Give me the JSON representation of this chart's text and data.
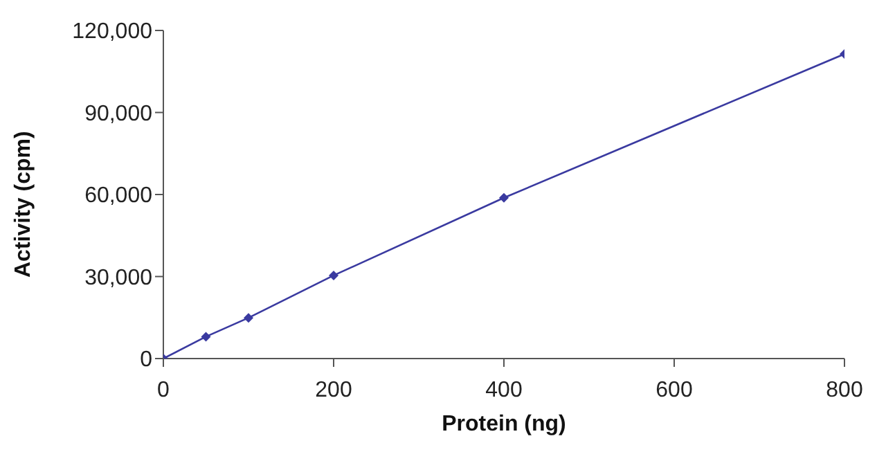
{
  "chart_data": {
    "type": "line",
    "xlabel": "Protein (ng)",
    "ylabel": "Activity (cpm)",
    "x": [
      0,
      50,
      100,
      200,
      400,
      800
    ],
    "series": [
      {
        "color": "#3a3aa0",
        "values": [
          0,
          8000,
          14900,
          30400,
          58800,
          111400
        ]
      }
    ],
    "xlim": [
      0,
      800
    ],
    "xticks": [
      0,
      200,
      400,
      600,
      800
    ],
    "ylim": [
      0,
      120000
    ],
    "yticks": [
      {
        "value": 0,
        "label": "0"
      },
      {
        "value": 30000,
        "label": "30,000"
      },
      {
        "value": 60000,
        "label": "60,000"
      },
      {
        "value": 90000,
        "label": "90,000"
      },
      {
        "value": 120000,
        "label": "120,000"
      }
    ],
    "grid": false,
    "legend": false,
    "marker": "diamond",
    "line_style": "solid"
  }
}
